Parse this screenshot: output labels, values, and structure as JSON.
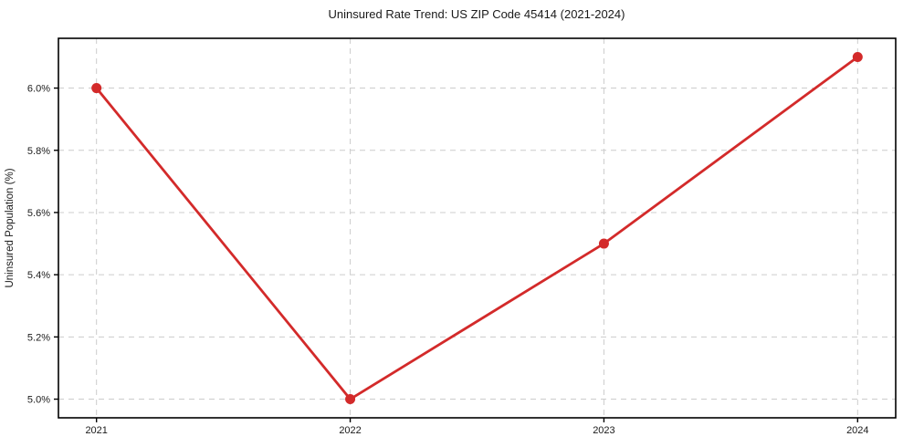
{
  "chart_data": {
    "type": "line",
    "title": "Uninsured Rate Trend: US ZIP Code 45414 (2021-2024)",
    "xlabel": "",
    "ylabel": "Uninsured Population (%)",
    "x": [
      2021,
      2022,
      2023,
      2024
    ],
    "xtick_labels": [
      "2021",
      "2022",
      "2023",
      "2024"
    ],
    "values": [
      6.0,
      5.0,
      5.5,
      6.1
    ],
    "yticks": [
      5.0,
      5.2,
      5.4,
      5.6,
      5.8,
      6.0
    ],
    "ytick_labels": [
      "5.0%",
      "5.2%",
      "5.4%",
      "5.6%",
      "5.8%",
      "6.0%"
    ],
    "xlim": [
      2020.85,
      2024.15
    ],
    "ylim": [
      4.94,
      6.16
    ],
    "grid": true,
    "grid_line_style": "dashed",
    "legend_position": "none",
    "marker": "circle",
    "colors": {
      "line": "#d32a2a",
      "marker": "#d32a2a",
      "grid": "#cccccc",
      "axis": "#000000",
      "text": "#1a1a1a",
      "background": "#ffffff"
    }
  }
}
